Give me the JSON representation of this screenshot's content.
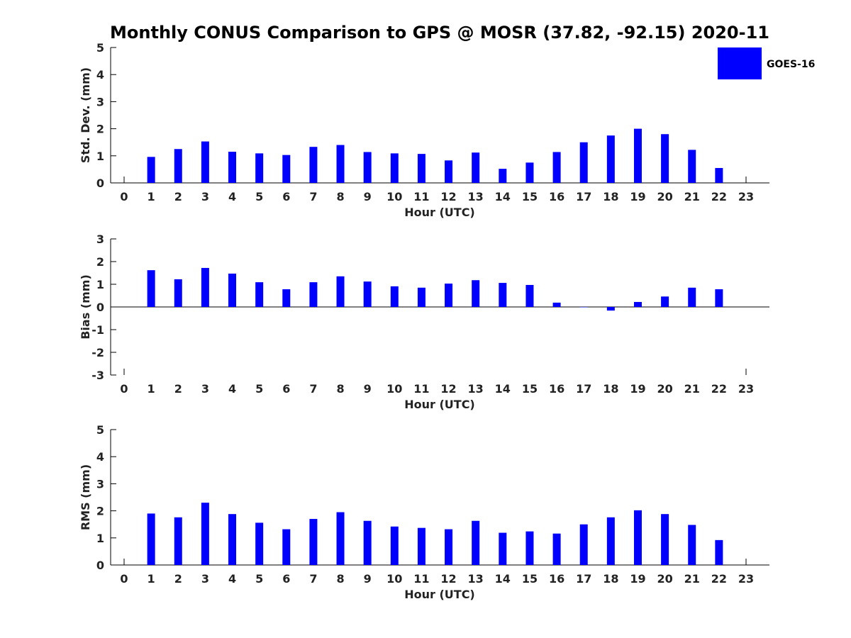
{
  "title": "Monthly CONUS Comparison to GPS @ MOSR (37.82, -92.15) 2020-11",
  "legend": {
    "label": "GOES-16",
    "color": "#0000ff",
    "placement": "top-right"
  },
  "chart_data": [
    {
      "type": "bar",
      "name": "std-dev",
      "xlabel": "Hour (UTC)",
      "ylabel": "Std. Dev. (mm)",
      "ylim": [
        0,
        5
      ],
      "yticks": [
        "0",
        "1",
        "2",
        "3",
        "4",
        "5"
      ],
      "categories": [
        "0",
        "1",
        "2",
        "3",
        "4",
        "5",
        "6",
        "7",
        "8",
        "9",
        "10",
        "11",
        "12",
        "13",
        "14",
        "15",
        "16",
        "17",
        "18",
        "19",
        "20",
        "21",
        "22",
        "23"
      ],
      "series": [
        {
          "name": "GOES-16",
          "values": [
            null,
            0.96,
            1.25,
            1.53,
            1.15,
            1.09,
            1.03,
            1.33,
            1.4,
            1.14,
            1.09,
            1.07,
            0.83,
            1.12,
            0.52,
            0.75,
            1.14,
            1.5,
            1.75,
            2.0,
            1.8,
            1.22,
            0.55,
            null
          ]
        }
      ]
    },
    {
      "type": "bar",
      "name": "bias",
      "xlabel": "Hour (UTC)",
      "ylabel": "Bias (mm)",
      "ylim": [
        -3,
        3
      ],
      "yticks": [
        "-3",
        "-2",
        "-1",
        "0",
        "1",
        "2",
        "3"
      ],
      "categories": [
        "0",
        "1",
        "2",
        "3",
        "4",
        "5",
        "6",
        "7",
        "8",
        "9",
        "10",
        "11",
        "12",
        "13",
        "14",
        "15",
        "16",
        "17",
        "18",
        "19",
        "20",
        "21",
        "22",
        "23"
      ],
      "series": [
        {
          "name": "GOES-16",
          "values": [
            null,
            1.62,
            1.22,
            1.72,
            1.47,
            1.09,
            0.78,
            1.09,
            1.35,
            1.12,
            0.91,
            0.85,
            1.03,
            1.18,
            1.06,
            0.97,
            0.19,
            0.0,
            -0.16,
            0.22,
            0.46,
            0.85,
            0.78,
            null
          ]
        }
      ]
    },
    {
      "type": "bar",
      "name": "rms",
      "xlabel": "Hour (UTC)",
      "ylabel": "RMS (mm)",
      "ylim": [
        0,
        5
      ],
      "yticks": [
        "0",
        "1",
        "2",
        "3",
        "4",
        "5"
      ],
      "categories": [
        "0",
        "1",
        "2",
        "3",
        "4",
        "5",
        "6",
        "7",
        "8",
        "9",
        "10",
        "11",
        "12",
        "13",
        "14",
        "15",
        "16",
        "17",
        "18",
        "19",
        "20",
        "21",
        "22",
        "23"
      ],
      "series": [
        {
          "name": "GOES-16",
          "values": [
            null,
            1.9,
            1.76,
            2.3,
            1.88,
            1.56,
            1.32,
            1.7,
            1.95,
            1.63,
            1.42,
            1.37,
            1.32,
            1.63,
            1.19,
            1.24,
            1.16,
            1.5,
            1.76,
            2.02,
            1.88,
            1.48,
            0.92,
            null
          ]
        }
      ]
    }
  ]
}
